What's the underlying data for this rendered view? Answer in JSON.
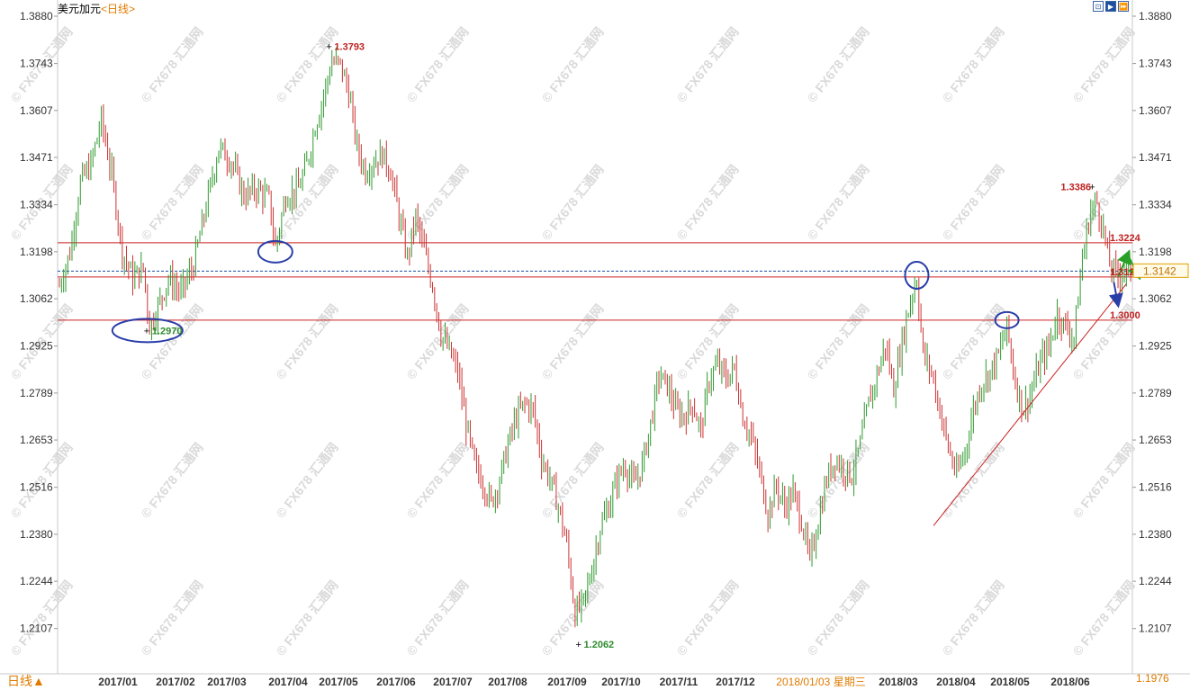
{
  "header": {
    "symbol": "美元加元",
    "period": "<日线>"
  },
  "toolbar": {
    "buttons": [
      {
        "icon": "zoom-icon",
        "glyph": "⊡"
      },
      {
        "icon": "play-icon",
        "glyph": "▶"
      },
      {
        "icon": "fast-forward-icon",
        "glyph": "⏩"
      }
    ]
  },
  "footer": {
    "period_button": "日线",
    "arrow_glyph": "▲"
  },
  "watermark": "© FX678 汇通网",
  "chart_data": {
    "type": "ohlc",
    "instrument": "USDCAD",
    "ylim": [
      1.1976,
      1.388
    ],
    "y_ticks": [
      "1.3880",
      "1.3743",
      "1.3607",
      "1.3471",
      "1.3334",
      "1.3198",
      "1.3062",
      "1.2925",
      "1.2789",
      "1.2653",
      "1.2516",
      "1.2380",
      "1.2244",
      "1.2107"
    ],
    "bottom_right_value": "1.1976",
    "current_price_label": "1.3142",
    "x_labels": [
      "2017/01",
      "2017/02",
      "2017/03",
      "2017/04",
      "2017/05",
      "2017/06",
      "2017/07",
      "2017/08",
      "2017/09",
      "2017/10",
      "2017/11",
      "2017/12",
      "2018/01/03 星期三",
      "2018/03",
      "2018/04",
      "2018/05",
      "2018/06"
    ],
    "x_labels_highlight_index": 12,
    "colors": {
      "up": "#2f9a2f",
      "down": "#cc3333",
      "level_line": "#cc2222",
      "dashed_line": "#1a4fa8",
      "ellipse": "#2a3ea8",
      "label_red": "#c02020",
      "label_green": "#2e8b2e",
      "arrow_green": "#28a028",
      "arrow_blue": "#2a3ea8",
      "axis_text": "#333333",
      "date_highlight": "#e07b00"
    },
    "horizontal_levels": [
      1.3224,
      1.3125,
      1.3
    ],
    "dashed_level": 1.3142,
    "trendline": {
      "from_bar": 417,
      "from_price": 1.2405,
      "to_bar": 509,
      "to_price": 1.3105
    },
    "annotations": [
      {
        "text": "1.3793",
        "bar": 129,
        "price": 1.3793,
        "style": "red",
        "side": "right"
      },
      {
        "text": "1.2970",
        "bar": 42,
        "price": 1.297,
        "style": "green",
        "side": "right"
      },
      {
        "text": "1.2062",
        "bar": 248,
        "price": 1.2062,
        "style": "green",
        "side": "right"
      },
      {
        "text": "1.3386",
        "bar": 493,
        "price": 1.3386,
        "style": "red",
        "side": "left"
      },
      {
        "text": "1.3224",
        "bar": 499,
        "price": 1.3224,
        "style": "red",
        "side": "right",
        "dy": -6
      },
      {
        "text": "1.3125",
        "bar": 499,
        "price": 1.3125,
        "style": "red",
        "side": "right",
        "dy": -6
      },
      {
        "text": "1.3000",
        "bar": 499,
        "price": 1.3,
        "style": "red",
        "side": "right",
        "dy": -6
      }
    ],
    "ellipses": [
      {
        "bar": 42,
        "price": 1.297,
        "rx": 39,
        "ry": 13
      },
      {
        "bar": 103,
        "price": 1.3198,
        "rx": 19,
        "ry": 12
      },
      {
        "bar": 409,
        "price": 1.313,
        "rx": 13,
        "ry": 15
      },
      {
        "bar": 452,
        "price": 1.3,
        "rx": 13,
        "ry": 9
      }
    ],
    "arrows": [
      {
        "from_bar": 505,
        "from_price": 1.3125,
        "to_bar": 510,
        "to_price": 1.3195,
        "color": "green"
      },
      {
        "from_bar": 510,
        "from_price": 1.3185,
        "to_bar": 515,
        "to_price": 1.3125,
        "color": "green"
      },
      {
        "from_bar": 503,
        "from_price": 1.311,
        "to_bar": 505,
        "to_price": 1.3045,
        "color": "blue"
      }
    ],
    "bars_count": 512,
    "anchors": [
      [
        0,
        1.31
      ],
      [
        5,
        1.3195
      ],
      [
        10,
        1.34
      ],
      [
        15,
        1.345
      ],
      [
        20,
        1.358
      ],
      [
        25,
        1.342
      ],
      [
        30,
        1.32
      ],
      [
        35,
        1.312
      ],
      [
        40,
        1.315
      ],
      [
        43,
        1.298
      ],
      [
        47,
        1.304
      ],
      [
        52,
        1.312
      ],
      [
        58,
        1.308
      ],
      [
        64,
        1.316
      ],
      [
        70,
        1.333
      ],
      [
        76,
        1.35
      ],
      [
        82,
        1.346
      ],
      [
        88,
        1.336
      ],
      [
        94,
        1.338
      ],
      [
        100,
        1.335
      ],
      [
        103,
        1.321
      ],
      [
        108,
        1.336
      ],
      [
        114,
        1.338
      ],
      [
        118,
        1.345
      ],
      [
        122,
        1.356
      ],
      [
        126,
        1.365
      ],
      [
        130,
        1.375
      ],
      [
        134,
        1.374
      ],
      [
        138,
        1.366
      ],
      [
        142,
        1.35
      ],
      [
        146,
        1.343
      ],
      [
        150,
        1.346
      ],
      [
        154,
        1.348
      ],
      [
        158,
        1.343
      ],
      [
        162,
        1.33
      ],
      [
        166,
        1.318
      ],
      [
        170,
        1.33
      ],
      [
        174,
        1.32
      ],
      [
        178,
        1.31
      ],
      [
        182,
        1.296
      ],
      [
        186,
        1.291
      ],
      [
        190,
        1.285
      ],
      [
        194,
        1.27
      ],
      [
        198,
        1.258
      ],
      [
        202,
        1.253
      ],
      [
        206,
        1.247
      ],
      [
        210,
        1.254
      ],
      [
        214,
        1.264
      ],
      [
        218,
        1.272
      ],
      [
        222,
        1.276
      ],
      [
        226,
        1.274
      ],
      [
        230,
        1.26
      ],
      [
        234,
        1.254
      ],
      [
        238,
        1.246
      ],
      [
        242,
        1.235
      ],
      [
        246,
        1.215
      ],
      [
        250,
        1.218
      ],
      [
        254,
        1.228
      ],
      [
        258,
        1.24
      ],
      [
        262,
        1.246
      ],
      [
        266,
        1.254
      ],
      [
        270,
        1.258
      ],
      [
        274,
        1.252
      ],
      [
        278,
        1.258
      ],
      [
        282,
        1.27
      ],
      [
        286,
        1.284
      ],
      [
        290,
        1.281
      ],
      [
        294,
        1.274
      ],
      [
        298,
        1.272
      ],
      [
        302,
        1.276
      ],
      [
        306,
        1.268
      ],
      [
        310,
        1.283
      ],
      [
        314,
        1.287
      ],
      [
        318,
        1.283
      ],
      [
        322,
        1.286
      ],
      [
        326,
        1.272
      ],
      [
        330,
        1.266
      ],
      [
        334,
        1.256
      ],
      [
        338,
        1.244
      ],
      [
        342,
        1.252
      ],
      [
        346,
        1.246
      ],
      [
        350,
        1.25
      ],
      [
        354,
        1.242
      ],
      [
        358,
        1.23
      ],
      [
        362,
        1.242
      ],
      [
        366,
        1.254
      ],
      [
        370,
        1.26
      ],
      [
        374,
        1.257
      ],
      [
        378,
        1.255
      ],
      [
        382,
        1.264
      ],
      [
        386,
        1.276
      ],
      [
        390,
        1.284
      ],
      [
        394,
        1.293
      ],
      [
        398,
        1.28
      ],
      [
        402,
        1.294
      ],
      [
        406,
        1.306
      ],
      [
        409,
        1.312
      ],
      [
        412,
        1.29
      ],
      [
        416,
        1.285
      ],
      [
        420,
        1.274
      ],
      [
        424,
        1.263
      ],
      [
        428,
        1.255
      ],
      [
        432,
        1.262
      ],
      [
        436,
        1.274
      ],
      [
        440,
        1.282
      ],
      [
        444,
        1.285
      ],
      [
        448,
        1.29
      ],
      [
        452,
        1.298
      ],
      [
        456,
        1.282
      ],
      [
        460,
        1.274
      ],
      [
        464,
        1.28
      ],
      [
        468,
        1.288
      ],
      [
        472,
        1.292
      ],
      [
        476,
        1.302
      ],
      [
        480,
        1.298
      ],
      [
        484,
        1.295
      ],
      [
        488,
        1.318
      ],
      [
        492,
        1.332
      ],
      [
        495,
        1.334
      ],
      [
        498,
        1.326
      ],
      [
        501,
        1.316
      ],
      [
        504,
        1.313
      ],
      [
        508,
        1.3142
      ]
    ]
  }
}
